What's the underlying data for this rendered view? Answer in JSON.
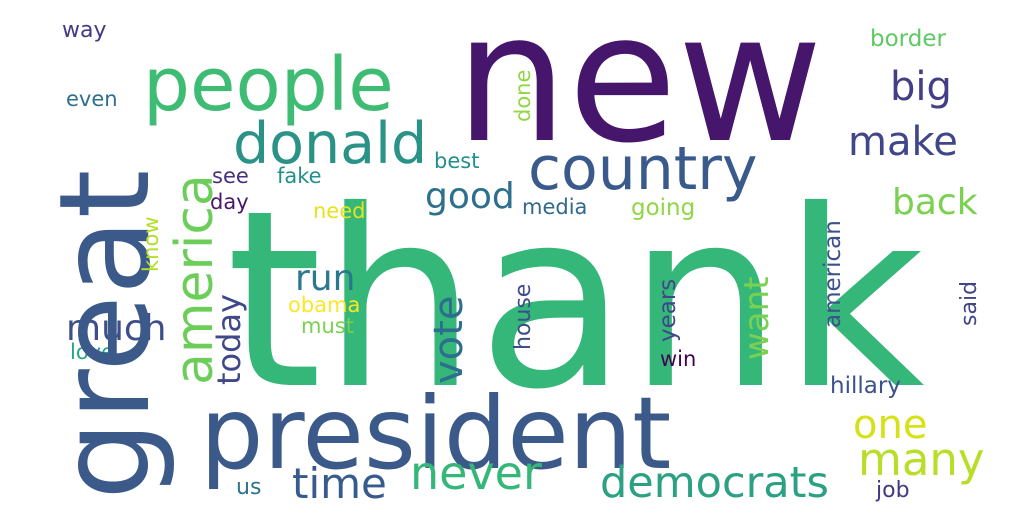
{
  "words": [
    {
      "id": "thank",
      "text": "thank",
      "color": "#35b779"
    },
    {
      "id": "new",
      "text": "new",
      "color": "#46166d"
    },
    {
      "id": "great",
      "text": "great",
      "color": "#3b5a8a"
    },
    {
      "id": "president",
      "text": "president",
      "color": "#3b5a8a"
    },
    {
      "id": "people",
      "text": "people",
      "color": "#3fbc73"
    },
    {
      "id": "donald",
      "text": "donald",
      "color": "#2a9287"
    },
    {
      "id": "america",
      "text": "america",
      "color": "#6cce59"
    },
    {
      "id": "country",
      "text": "country",
      "color": "#3a5a8c"
    },
    {
      "id": "democrats",
      "text": "democrats",
      "color": "#2ba083"
    },
    {
      "id": "never",
      "text": "never",
      "color": "#35b779"
    },
    {
      "id": "time",
      "text": "time",
      "color": "#375b8d"
    },
    {
      "id": "many",
      "text": "many",
      "color": "#b8de29"
    },
    {
      "id": "one",
      "text": "one",
      "color": "#d6e217"
    },
    {
      "id": "vote",
      "text": "vote",
      "color": "#2d6e8e"
    },
    {
      "id": "make",
      "text": "make",
      "color": "#404688"
    },
    {
      "id": "big",
      "text": "big",
      "color": "#433e85"
    },
    {
      "id": "back",
      "text": "back",
      "color": "#7ad151"
    },
    {
      "id": "want",
      "text": "want",
      "color": "#7ad151"
    },
    {
      "id": "good",
      "text": "good",
      "color": "#2d708e"
    },
    {
      "id": "run",
      "text": "run",
      "color": "#2a788e"
    },
    {
      "id": "today",
      "text": "today",
      "color": "#3f4889"
    },
    {
      "id": "much",
      "text": "much",
      "color": "#3d4e8a"
    },
    {
      "id": "way",
      "text": "way",
      "color": "#443a83"
    },
    {
      "id": "even",
      "text": "even",
      "color": "#2d708e"
    },
    {
      "id": "border",
      "text": "border",
      "color": "#5ec962"
    },
    {
      "id": "done",
      "text": "done",
      "color": "#8fd744"
    },
    {
      "id": "best",
      "text": "best",
      "color": "#218f8d"
    },
    {
      "id": "see",
      "text": "see",
      "color": "#472f7d"
    },
    {
      "id": "fake",
      "text": "fake",
      "color": "#21918c"
    },
    {
      "id": "day",
      "text": "day",
      "color": "#48186a"
    },
    {
      "id": "need",
      "text": "need",
      "color": "#e5e419"
    },
    {
      "id": "media",
      "text": "media",
      "color": "#31688e"
    },
    {
      "id": "going",
      "text": "going",
      "color": "#8fd744"
    },
    {
      "id": "know",
      "text": "know",
      "color": "#b5de2b"
    },
    {
      "id": "obama",
      "text": "obama",
      "color": "#fde725"
    },
    {
      "id": "must",
      "text": "must",
      "color": "#7ad151"
    },
    {
      "id": "love",
      "text": "love",
      "color": "#22a785"
    },
    {
      "id": "house",
      "text": "house",
      "color": "#3e4c8a"
    },
    {
      "id": "years",
      "text": "years",
      "color": "#3f4788"
    },
    {
      "id": "win",
      "text": "win",
      "color": "#440154"
    },
    {
      "id": "american",
      "text": "american",
      "color": "#3b528b"
    },
    {
      "id": "said",
      "text": "said",
      "color": "#414487"
    },
    {
      "id": "hillary",
      "text": "hillary",
      "color": "#3b528b"
    },
    {
      "id": "us",
      "text": "us",
      "color": "#2c728e"
    },
    {
      "id": "job",
      "text": "job",
      "color": "#453781"
    }
  ]
}
